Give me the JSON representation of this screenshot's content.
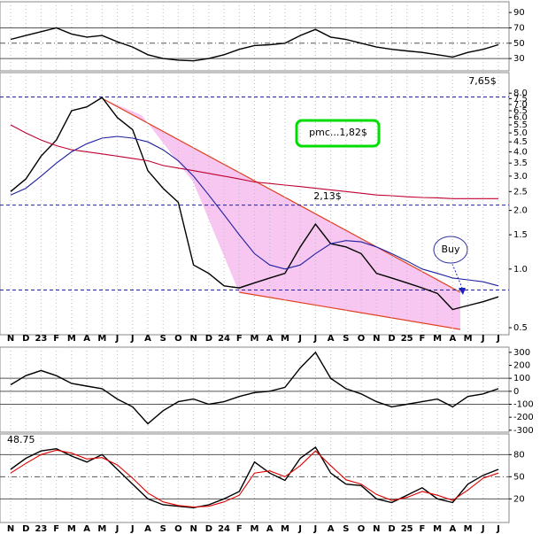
{
  "chart_data": [
    {
      "type": "line",
      "series": [
        {
          "name": "RSI",
          "color": "#000000",
          "values": [
            55,
            60,
            65,
            70,
            62,
            58,
            60,
            52,
            45,
            35,
            30,
            28,
            27,
            30,
            35,
            42,
            47,
            48,
            50,
            60,
            68,
            58,
            55,
            50,
            45,
            42,
            40,
            38,
            35,
            32,
            38,
            42,
            48
          ]
        }
      ],
      "ylim": [
        14,
        104
      ],
      "yticks": [
        90,
        70,
        50,
        30
      ],
      "hlines": [
        70,
        50,
        30
      ]
    },
    {
      "type": "line",
      "log": true,
      "categories": [
        "N",
        "D",
        "23",
        "F",
        "M",
        "A",
        "M",
        "J",
        "J",
        "A",
        "S",
        "O",
        "N",
        "D",
        "24",
        "F",
        "M",
        "A",
        "M",
        "J",
        "J",
        "A",
        "S",
        "O",
        "N",
        "D",
        "25",
        "F",
        "M",
        "A",
        "M",
        "J",
        "J"
      ],
      "series": [
        {
          "name": "Price",
          "color": "#000000",
          "values": [
            2.5,
            2.9,
            3.8,
            4.6,
            6.5,
            6.8,
            7.6,
            6.0,
            5.2,
            3.2,
            2.6,
            2.2,
            1.05,
            0.95,
            0.82,
            0.8,
            0.85,
            0.9,
            0.95,
            1.3,
            1.7,
            1.35,
            1.3,
            1.2,
            0.95,
            0.9,
            0.85,
            0.8,
            0.75,
            0.62,
            0.65,
            0.68,
            0.72
          ]
        },
        {
          "name": "MA200",
          "color": "#c00030",
          "values": [
            5.5,
            5.0,
            4.6,
            4.3,
            4.1,
            4.0,
            3.9,
            3.8,
            3.7,
            3.6,
            3.4,
            3.3,
            3.2,
            3.1,
            3.0,
            2.9,
            2.8,
            2.75,
            2.7,
            2.65,
            2.6,
            2.55,
            2.5,
            2.45,
            2.4,
            2.38,
            2.35,
            2.33,
            2.32,
            2.3,
            2.3,
            2.3,
            2.3
          ]
        },
        {
          "name": "MA50",
          "color": "#2020a0",
          "values": [
            2.4,
            2.6,
            3.0,
            3.5,
            4.0,
            4.4,
            4.7,
            4.8,
            4.7,
            4.5,
            4.1,
            3.6,
            3.0,
            2.4,
            1.9,
            1.5,
            1.2,
            1.05,
            1.0,
            1.05,
            1.2,
            1.35,
            1.4,
            1.38,
            1.3,
            1.2,
            1.1,
            1.0,
            0.95,
            0.9,
            0.88,
            0.86,
            0.82
          ]
        }
      ],
      "ylim": [
        0.46,
        10.2
      ],
      "yticks": [
        {
          "value": 8,
          "label": "8.0"
        },
        7.5,
        {
          "value": 7,
          "label": "7.0"
        },
        6.5,
        {
          "value": 6,
          "label": "6.0"
        },
        5.5,
        {
          "value": 5,
          "label": "5.0"
        },
        4.5,
        {
          "value": 4,
          "label": "4.0"
        },
        3.5,
        {
          "value": 3,
          "label": "3.0"
        },
        2.5,
        {
          "value": 2,
          "label": "2.0"
        },
        1.5,
        {
          "value": 1,
          "label": "1.0"
        },
        0.5
      ],
      "hlines": [
        7.65,
        2.13,
        0.78
      ],
      "annotations": [
        "7,65$",
        "pmc...1,82$",
        "2,13$",
        "Buy"
      ]
    },
    {
      "type": "line",
      "series": [
        {
          "name": "CCI",
          "color": "#000000",
          "values": [
            50,
            120,
            160,
            120,
            60,
            40,
            20,
            -60,
            -120,
            -250,
            -150,
            -80,
            -60,
            -100,
            -80,
            -40,
            -10,
            0,
            30,
            180,
            300,
            100,
            20,
            -20,
            -80,
            -120,
            -100,
            -80,
            -60,
            -120,
            -40,
            -20,
            20
          ]
        }
      ],
      "ylim": [
        -315,
        340
      ],
      "yticks": [
        300,
        200,
        100,
        0,
        -100,
        -200,
        -300
      ],
      "hlines": [
        100,
        0,
        -100
      ]
    },
    {
      "type": "line",
      "series": [
        {
          "name": "%K",
          "color": "#000000",
          "values": [
            60,
            75,
            85,
            88,
            78,
            70,
            80,
            60,
            40,
            20,
            12,
            10,
            8,
            12,
            20,
            30,
            70,
            55,
            45,
            75,
            90,
            55,
            40,
            38,
            20,
            15,
            25,
            35,
            20,
            15,
            40,
            52,
            60
          ]
        },
        {
          "name": "%D",
          "color": "#e00000",
          "values": [
            55,
            68,
            80,
            86,
            82,
            74,
            76,
            66,
            48,
            28,
            16,
            11,
            9,
            10,
            16,
            25,
            55,
            58,
            50,
            65,
            85,
            65,
            46,
            40,
            26,
            18,
            22,
            30,
            25,
            18,
            32,
            48,
            55
          ]
        }
      ],
      "ylim": [
        -12,
        108
      ],
      "yticks": [
        80,
        50,
        20
      ],
      "hlines": [
        80,
        50,
        20
      ],
      "annotations": [
        "48.75"
      ]
    }
  ]
}
